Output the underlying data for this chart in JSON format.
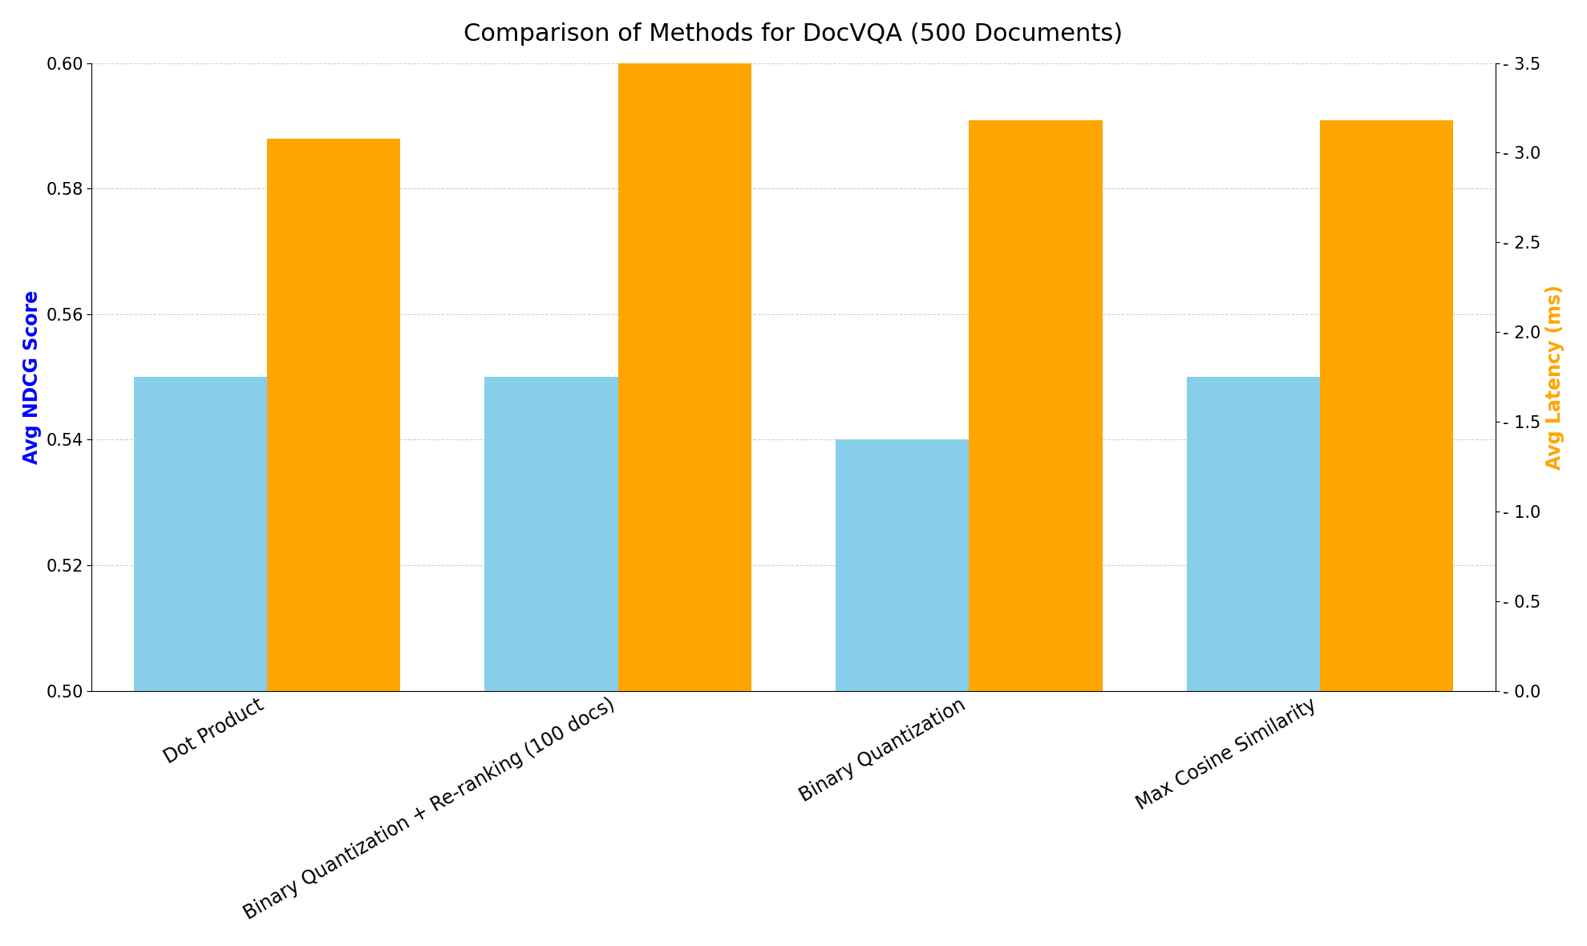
{
  "title": "Comparison of Methods for DocVQA (500 Documents)",
  "categories": [
    "Dot Product",
    "Binary Quantization + Re-ranking (100 docs)",
    "Binary Quantization",
    "Max Cosine Similarity"
  ],
  "ndcg_scores": [
    0.55,
    0.55,
    0.54,
    0.55
  ],
  "latency_ms": [
    3.08,
    3.54,
    3.18,
    3.18
  ],
  "bar_color_ndcg": "#87CEEB",
  "bar_color_latency": "#FFA500",
  "ylabel_left": "Avg NDCG Score",
  "ylabel_right": "Avg Latency (ms)",
  "ylim_left": [
    0.5,
    0.6
  ],
  "ylim_right": [
    0.0,
    3.5
  ],
  "title_fontsize": 22,
  "label_fontsize": 17,
  "tick_fontsize": 15,
  "ylabel_left_color": "blue",
  "ylabel_right_color": "orange",
  "background_color": "#ffffff",
  "bar_width": 0.38,
  "left_yticks": [
    0.5,
    0.52,
    0.54,
    0.56,
    0.58,
    0.6
  ],
  "right_yticks": [
    0.0,
    0.5,
    1.0,
    1.5,
    2.0,
    2.5,
    3.0,
    3.5
  ]
}
